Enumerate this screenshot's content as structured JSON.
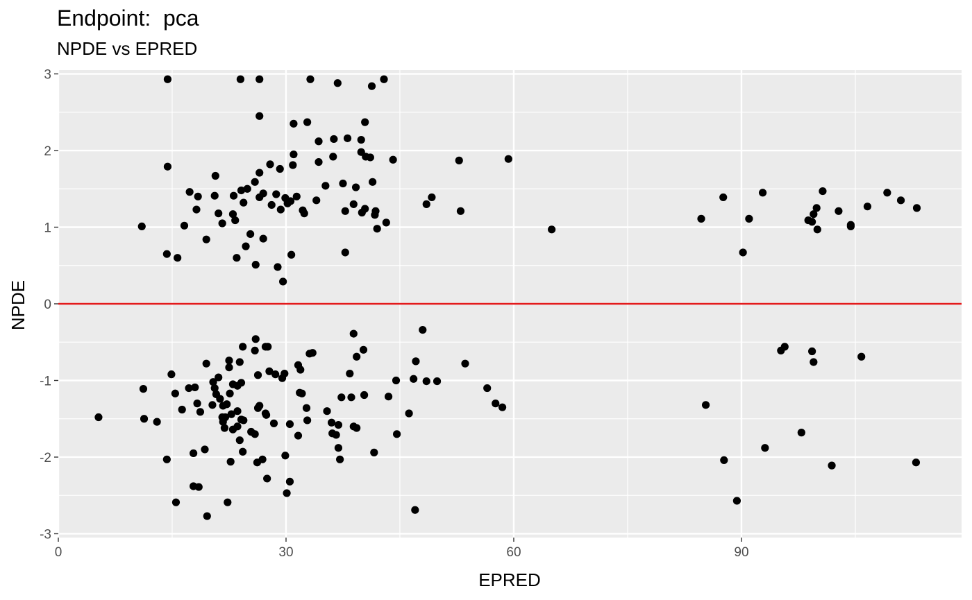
{
  "chart_data": {
    "type": "scatter",
    "title": "Endpoint:  pca",
    "subtitle": "NPDE vs EPRED",
    "xlabel": "EPRED",
    "ylabel": "NPDE",
    "xlim": [
      0,
      119
    ],
    "ylim": [
      -3.05,
      3.05
    ],
    "x_ticks": [
      0,
      30,
      60,
      90
    ],
    "y_ticks": [
      -3,
      -2,
      -1,
      0,
      1,
      2,
      3
    ],
    "x_minor_ticks": [
      15,
      45,
      75,
      105
    ],
    "y_minor_ticks": [
      -2.5,
      -1.5,
      -0.5,
      0.5,
      1.5,
      2.5
    ],
    "grid": true,
    "reference_line": {
      "y": 0,
      "color": "#e31a1c"
    },
    "colors": {
      "panel": "#ebebeb",
      "grid": "#ffffff",
      "point": "#000000",
      "refline": "#e31a1c"
    },
    "points": [
      [
        14.4,
        2.93
      ],
      [
        24.0,
        2.93
      ],
      [
        26.5,
        2.93
      ],
      [
        33.2,
        2.93
      ],
      [
        36.8,
        2.88
      ],
      [
        41.3,
        2.84
      ],
      [
        42.9,
        2.93
      ],
      [
        26.5,
        2.45
      ],
      [
        31.0,
        2.35
      ],
      [
        32.8,
        2.37
      ],
      [
        40.4,
        2.37
      ],
      [
        34.3,
        2.12
      ],
      [
        36.3,
        2.15
      ],
      [
        38.1,
        2.16
      ],
      [
        39.9,
        2.14
      ],
      [
        31.0,
        1.95
      ],
      [
        36.2,
        1.92
      ],
      [
        39.9,
        1.98
      ],
      [
        40.5,
        1.92
      ],
      [
        41.1,
        1.91
      ],
      [
        44.1,
        1.88
      ],
      [
        52.8,
        1.87
      ],
      [
        59.3,
        1.89
      ],
      [
        14.4,
        1.79
      ],
      [
        20.7,
        1.67
      ],
      [
        26.5,
        1.71
      ],
      [
        27.9,
        1.82
      ],
      [
        29.2,
        1.76
      ],
      [
        30.9,
        1.81
      ],
      [
        34.3,
        1.85
      ],
      [
        17.3,
        1.46
      ],
      [
        18.4,
        1.4
      ],
      [
        20.6,
        1.41
      ],
      [
        23.1,
        1.41
      ],
      [
        24.1,
        1.48
      ],
      [
        24.4,
        1.32
      ],
      [
        24.9,
        1.5
      ],
      [
        25.9,
        1.59
      ],
      [
        26.5,
        1.39
      ],
      [
        27.0,
        1.44
      ],
      [
        28.1,
        1.29
      ],
      [
        28.7,
        1.43
      ],
      [
        29.3,
        1.23
      ],
      [
        29.9,
        1.38
      ],
      [
        30.2,
        1.31
      ],
      [
        30.6,
        1.34
      ],
      [
        31.4,
        1.4
      ],
      [
        34.0,
        1.35
      ],
      [
        35.2,
        1.54
      ],
      [
        37.5,
        1.57
      ],
      [
        39.2,
        1.52
      ],
      [
        41.4,
        1.59
      ],
      [
        18.2,
        1.23
      ],
      [
        21.1,
        1.18
      ],
      [
        23.0,
        1.17
      ],
      [
        32.2,
        1.22
      ],
      [
        32.4,
        1.18
      ],
      [
        37.8,
        1.21
      ],
      [
        38.9,
        1.3
      ],
      [
        40.0,
        1.19
      ],
      [
        40.4,
        1.24
      ],
      [
        41.7,
        1.16
      ],
      [
        41.8,
        1.21
      ],
      [
        48.5,
        1.3
      ],
      [
        49.2,
        1.39
      ],
      [
        53.0,
        1.21
      ],
      [
        11.0,
        1.01
      ],
      [
        16.6,
        1.02
      ],
      [
        19.5,
        0.84
      ],
      [
        21.6,
        1.05
      ],
      [
        23.3,
        1.09
      ],
      [
        25.3,
        0.91
      ],
      [
        27.0,
        0.85
      ],
      [
        42.0,
        0.98
      ],
      [
        43.2,
        1.06
      ],
      [
        65.0,
        0.97
      ],
      [
        14.3,
        0.65
      ],
      [
        15.7,
        0.6
      ],
      [
        23.5,
        0.6
      ],
      [
        24.7,
        0.75
      ],
      [
        26.0,
        0.51
      ],
      [
        28.9,
        0.48
      ],
      [
        30.7,
        0.64
      ],
      [
        29.6,
        0.29
      ],
      [
        37.8,
        0.67
      ],
      [
        84.7,
        1.11
      ],
      [
        87.6,
        1.39
      ],
      [
        91.0,
        1.11
      ],
      [
        92.8,
        1.45
      ],
      [
        90.2,
        0.67
      ],
      [
        98.8,
        1.09
      ],
      [
        99.3,
        1.07
      ],
      [
        99.5,
        1.17
      ],
      [
        99.9,
        1.25
      ],
      [
        100.0,
        0.97
      ],
      [
        100.7,
        1.47
      ],
      [
        102.8,
        1.21
      ],
      [
        104.4,
        1.03
      ],
      [
        104.4,
        1.01
      ],
      [
        106.6,
        1.27
      ],
      [
        109.2,
        1.45
      ],
      [
        111.0,
        1.35
      ],
      [
        113.1,
        1.25
      ],
      [
        26.0,
        -0.46
      ],
      [
        27.3,
        -0.56
      ],
      [
        27.6,
        -0.56
      ],
      [
        24.3,
        -0.56
      ],
      [
        25.9,
        -0.61
      ],
      [
        33.1,
        -0.65
      ],
      [
        33.5,
        -0.64
      ],
      [
        38.9,
        -0.39
      ],
      [
        40.2,
        -0.6
      ],
      [
        39.3,
        -0.69
      ],
      [
        48.0,
        -0.34
      ],
      [
        47.1,
        -0.75
      ],
      [
        53.6,
        -0.78
      ],
      [
        14.9,
        -0.92
      ],
      [
        19.5,
        -0.78
      ],
      [
        22.5,
        -0.74
      ],
      [
        22.5,
        -0.83
      ],
      [
        23.9,
        -0.76
      ],
      [
        21.1,
        -0.96
      ],
      [
        20.4,
        -1.02
      ],
      [
        23.0,
        -1.05
      ],
      [
        23.6,
        -1.07
      ],
      [
        24.1,
        -1.03
      ],
      [
        26.3,
        -0.93
      ],
      [
        27.8,
        -0.88
      ],
      [
        28.6,
        -0.92
      ],
      [
        29.5,
        -0.97
      ],
      [
        29.8,
        -0.91
      ],
      [
        31.6,
        -0.8
      ],
      [
        31.9,
        -0.86
      ],
      [
        38.4,
        -0.91
      ],
      [
        11.2,
        -1.11
      ],
      [
        15.4,
        -1.17
      ],
      [
        17.2,
        -1.1
      ],
      [
        18.0,
        -1.09
      ],
      [
        20.6,
        -1.1
      ],
      [
        20.8,
        -1.18
      ],
      [
        21.3,
        -1.24
      ],
      [
        22.6,
        -1.17
      ],
      [
        31.8,
        -1.16
      ],
      [
        32.1,
        -1.17
      ],
      [
        37.3,
        -1.22
      ],
      [
        38.6,
        -1.22
      ],
      [
        40.3,
        -1.19
      ],
      [
        43.5,
        -1.21
      ],
      [
        44.5,
        -1.0
      ],
      [
        46.8,
        -0.98
      ],
      [
        48.5,
        -1.01
      ],
      [
        49.9,
        -1.01
      ],
      [
        56.5,
        -1.1
      ],
      [
        16.3,
        -1.38
      ],
      [
        18.3,
        -1.3
      ],
      [
        18.7,
        -1.41
      ],
      [
        20.3,
        -1.32
      ],
      [
        21.7,
        -1.33
      ],
      [
        22.2,
        -1.31
      ],
      [
        22.8,
        -1.44
      ],
      [
        23.6,
        -1.4
      ],
      [
        26.3,
        -1.36
      ],
      [
        26.5,
        -1.33
      ],
      [
        27.3,
        -1.43
      ],
      [
        27.4,
        -1.45
      ],
      [
        32.7,
        -1.36
      ],
      [
        32.8,
        -1.52
      ],
      [
        35.4,
        -1.4
      ],
      [
        5.3,
        -1.48
      ],
      [
        11.3,
        -1.5
      ],
      [
        13.0,
        -1.54
      ],
      [
        21.6,
        -1.48
      ],
      [
        21.7,
        -1.54
      ],
      [
        22.0,
        -1.48
      ],
      [
        24.1,
        -1.51
      ],
      [
        24.4,
        -1.52
      ],
      [
        23.0,
        -1.64
      ],
      [
        21.9,
        -1.62
      ],
      [
        23.6,
        -1.6
      ],
      [
        25.4,
        -1.67
      ],
      [
        25.9,
        -1.7
      ],
      [
        28.4,
        -1.56
      ],
      [
        30.5,
        -1.57
      ],
      [
        31.6,
        -1.72
      ],
      [
        36.0,
        -1.55
      ],
      [
        36.9,
        -1.58
      ],
      [
        36.1,
        -1.69
      ],
      [
        36.6,
        -1.71
      ],
      [
        38.9,
        -1.6
      ],
      [
        39.3,
        -1.62
      ],
      [
        44.6,
        -1.7
      ],
      [
        46.2,
        -1.43
      ],
      [
        57.6,
        -1.3
      ],
      [
        58.5,
        -1.35
      ],
      [
        14.3,
        -2.03
      ],
      [
        17.8,
        -1.95
      ],
      [
        19.3,
        -1.9
      ],
      [
        23.9,
        -1.78
      ],
      [
        24.3,
        -1.93
      ],
      [
        22.7,
        -2.06
      ],
      [
        26.2,
        -2.07
      ],
      [
        26.9,
        -2.03
      ],
      [
        29.9,
        -1.98
      ],
      [
        36.9,
        -1.88
      ],
      [
        37.1,
        -2.03
      ],
      [
        41.6,
        -1.94
      ],
      [
        17.8,
        -2.38
      ],
      [
        18.5,
        -2.39
      ],
      [
        27.5,
        -2.28
      ],
      [
        30.5,
        -2.32
      ],
      [
        30.1,
        -2.47
      ],
      [
        15.5,
        -2.59
      ],
      [
        22.3,
        -2.59
      ],
      [
        19.6,
        -2.77
      ],
      [
        47.0,
        -2.69
      ],
      [
        85.3,
        -1.32
      ],
      [
        87.7,
        -2.04
      ],
      [
        89.4,
        -2.57
      ],
      [
        93.1,
        -1.88
      ],
      [
        95.2,
        -0.61
      ],
      [
        95.7,
        -0.56
      ],
      [
        97.9,
        -1.68
      ],
      [
        99.3,
        -0.62
      ],
      [
        99.5,
        -0.76
      ],
      [
        101.9,
        -2.11
      ],
      [
        105.8,
        -0.69
      ],
      [
        113.0,
        -2.07
      ]
    ]
  }
}
